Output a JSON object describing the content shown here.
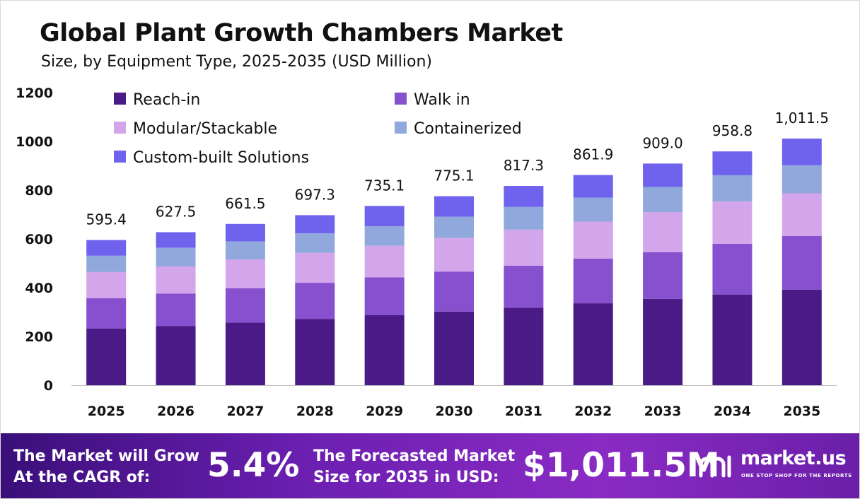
{
  "header": {
    "title": "Global Plant Growth Chambers Market",
    "subtitle": "Size, by Equipment Type, 2025-2035 (USD Million)"
  },
  "chart_data": {
    "type": "bar",
    "stacked": true,
    "categories": [
      "2025",
      "2026",
      "2027",
      "2028",
      "2029",
      "2030",
      "2031",
      "2032",
      "2033",
      "2034",
      "2035"
    ],
    "totals_labels": [
      "595.4",
      "627.5",
      "661.5",
      "697.3",
      "735.1",
      "775.1",
      "817.3",
      "861.9",
      "909.0",
      "958.8",
      "1,011.5"
    ],
    "series": [
      {
        "name": "Reach-in",
        "color": "#4a1a86",
        "values": [
          232,
          243,
          257,
          272,
          287,
          302,
          318,
          336,
          354,
          372,
          392
        ]
      },
      {
        "name": "Walk in",
        "color": "#8650cf",
        "values": [
          125,
          133,
          141,
          148,
          155,
          164,
          172,
          183,
          191,
          208,
          220
        ]
      },
      {
        "name": "Modular/Stackable",
        "color": "#d3a6eb",
        "values": [
          107,
          111,
          118,
          123,
          130,
          138,
          148,
          152,
          165,
          173,
          175
        ]
      },
      {
        "name": "Containerized",
        "color": "#91a8dc",
        "values": [
          67,
          77,
          74,
          80,
          80,
          87,
          93,
          98,
          103,
          108,
          115
        ]
      },
      {
        "name": "Custom-built Solutions",
        "color": "#6f63ee",
        "values": [
          64.4,
          63.5,
          71.5,
          74.3,
          83.1,
          84.1,
          86.3,
          92.9,
          96.0,
          97.8,
          109.5
        ]
      }
    ],
    "ylim": [
      0,
      1200
    ],
    "yticks": [
      "0",
      "200",
      "400",
      "600",
      "800",
      "1000",
      "1200"
    ],
    "legend_position": "top-left",
    "grid": false
  },
  "footer": {
    "cagr_label_line1": "The Market will Grow",
    "cagr_label_line2": "At the CAGR of:",
    "cagr_value": "5.4%",
    "forecast_label_line1": "The Forecasted Market",
    "forecast_label_line2": "Size for 2035 in USD:",
    "forecast_value": "$1,011.5M",
    "brand_name": "market.us",
    "brand_tagline": "ONE STOP SHOP FOR THE REPORTS"
  }
}
